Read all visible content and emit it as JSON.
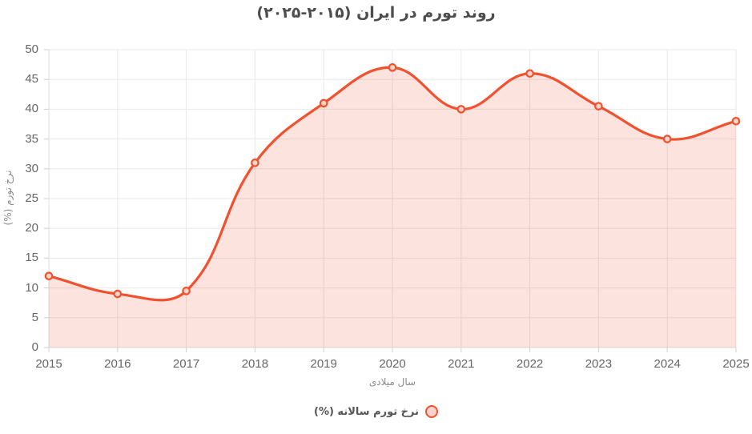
{
  "title": "روند تورم در ایران (۲۰۱۵-۲۰۲۵)",
  "colors": {
    "line": "#f0512f",
    "area_fill": "rgba(240,81,47,0.16)",
    "point_fill": "#fbd5c9",
    "grid": "#e8e8e8",
    "axis_border": "#dcdcdc",
    "tick_mark": "#cfcfcf",
    "tick_label": "#666666",
    "title_text": "#4d4d4d",
    "axis_title_text": "#8a8a8a",
    "legend_text": "#555555",
    "legend_marker_fill": "rgba(240,81,47,0.25)"
  },
  "chart_data": {
    "type": "area",
    "title": "روند تورم در ایران (۲۰۱۵-۲۰۲۵)",
    "categories": [
      "2015",
      "2016",
      "2017",
      "2018",
      "2019",
      "2020",
      "2021",
      "2022",
      "2023",
      "2024",
      "2025"
    ],
    "series": [
      {
        "name": "نرخ تورم سالانه (%)",
        "values": [
          12,
          9,
          9.5,
          31,
          41,
          47,
          40,
          46,
          40.5,
          35,
          38
        ]
      }
    ],
    "xlabel": "سال میلادی",
    "ylabel": "نرخ تورم (%)",
    "ylim": [
      0,
      50
    ],
    "ytick_step": 5,
    "grid": true,
    "legend_position": "bottom",
    "curve": "smooth",
    "markers": "open-circle"
  },
  "legend": {
    "label": "نرخ تورم سالانه (%)"
  }
}
